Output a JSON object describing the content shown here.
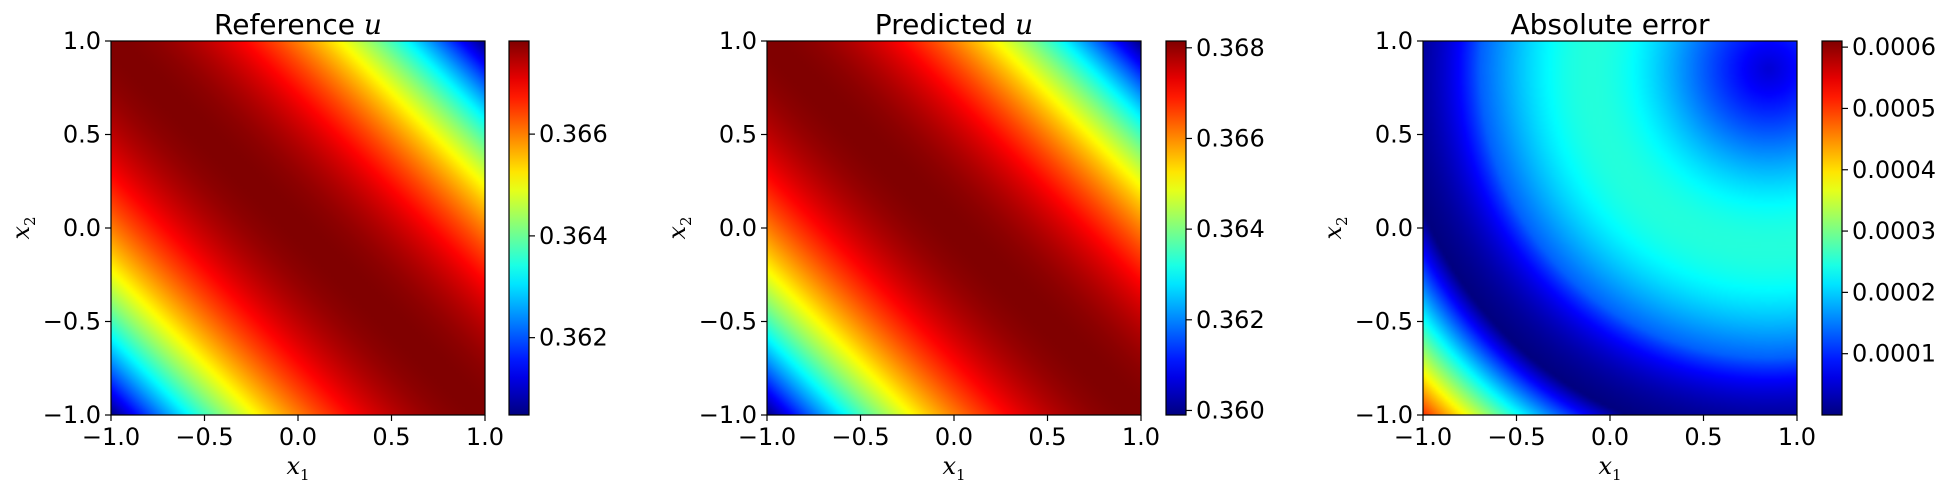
{
  "chart_data": [
    {
      "type": "heatmap",
      "title_prefix": "Reference ",
      "title_var": "u",
      "xlabel_base": "x",
      "xlabel_sub": "1",
      "ylabel_base": "x",
      "ylabel_sub": "2",
      "xlim": [
        -1.0,
        1.0
      ],
      "ylim": [
        -1.0,
        1.0
      ],
      "xticks": [
        "−1.0",
        "−0.5",
        "0.0",
        "0.5",
        "1.0"
      ],
      "yticks": [
        "−1.0",
        "−0.5",
        "0.0",
        "0.5",
        "1.0"
      ],
      "colormap": "jet",
      "colorbar_range": [
        0.36048,
        0.36783
      ],
      "colorbar_ticks": [
        {
          "value": 0.362,
          "label": "0.362"
        },
        {
          "value": 0.364,
          "label": "0.364"
        },
        {
          "value": 0.366,
          "label": "0.366"
        }
      ],
      "field": "max along diagonal x1 + x2 = 0 (≈0.3678), decreasing toward the top-right and bottom-left corners (≈0.3605)"
    },
    {
      "type": "heatmap",
      "title_prefix": "Predicted ",
      "title_var": "u",
      "xlabel_base": "x",
      "xlabel_sub": "1",
      "ylabel_base": "x",
      "ylabel_sub": "2",
      "xlim": [
        -1.0,
        1.0
      ],
      "ylim": [
        -1.0,
        1.0
      ],
      "xticks": [
        "−1.0",
        "−0.5",
        "0.0",
        "0.5",
        "1.0"
      ],
      "yticks": [
        "−1.0",
        "−0.5",
        "0.0",
        "0.5",
        "1.0"
      ],
      "colormap": "jet",
      "colorbar_range": [
        0.3599,
        0.36815
      ],
      "colorbar_ticks": [
        {
          "value": 0.36,
          "label": "0.360"
        },
        {
          "value": 0.362,
          "label": "0.362"
        },
        {
          "value": 0.364,
          "label": "0.364"
        },
        {
          "value": 0.366,
          "label": "0.366"
        },
        {
          "value": 0.368,
          "label": "0.368"
        }
      ],
      "field": "max along diagonal x1 + x2 = 0, decreasing toward the top-right and bottom-left corners"
    },
    {
      "type": "heatmap",
      "title_prefix": "Absolute error",
      "title_var": "",
      "xlabel_base": "x",
      "xlabel_sub": "1",
      "ylabel_base": "x",
      "ylabel_sub": "2",
      "xlim": [
        -1.0,
        1.0
      ],
      "ylim": [
        -1.0,
        1.0
      ],
      "xticks": [
        "−1.0",
        "−0.5",
        "0.0",
        "0.5",
        "1.0"
      ],
      "yticks": [
        "−1.0",
        "−0.5",
        "0.0",
        "0.5",
        "1.0"
      ],
      "colormap": "jet",
      "colorbar_range": [
        0.0,
        0.00061
      ],
      "colorbar_ticks": [
        {
          "value": 0.0001,
          "label": "0.0001"
        },
        {
          "value": 0.0002,
          "label": "0.0002"
        },
        {
          "value": 0.0003,
          "label": "0.0003"
        },
        {
          "value": 0.0004,
          "label": "0.0004"
        },
        {
          "value": 0.0005,
          "label": "0.0005"
        },
        {
          "value": 0.0006,
          "label": "0.0006"
        }
      ],
      "field": "≈0.0006 at the bottom-left corner, ≈0 along an arc from (−1.0, −0.2) to (0.5, −1.0), moderate ≈0.0002 near (−0.2, 0.5), ≈0 at the top-right corner"
    }
  ]
}
